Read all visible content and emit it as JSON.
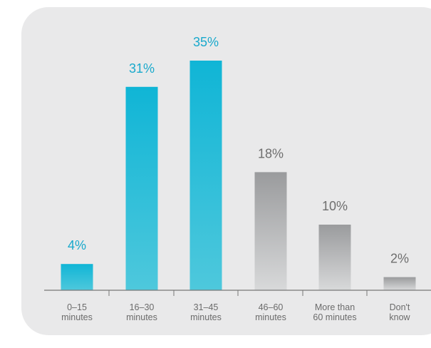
{
  "chart_data": {
    "type": "bar",
    "categories": [
      [
        "0–15",
        "minutes"
      ],
      [
        "16–30",
        "minutes"
      ],
      [
        "31–45",
        "minutes"
      ],
      [
        "46–60",
        "minutes"
      ],
      [
        "More than",
        "60 minutes"
      ],
      [
        "Don't",
        "know"
      ]
    ],
    "values": [
      4,
      31,
      35,
      18,
      10,
      2
    ],
    "value_labels": [
      "4%",
      "31%",
      "35%",
      "18%",
      "10%",
      "2%"
    ],
    "title": "",
    "xlabel": "",
    "ylabel": "",
    "ylim": [
      0,
      35
    ],
    "grid": false,
    "colors": {
      "highlight_bar_top": "#10b5d6",
      "highlight_bar_bottom": "#4ec8dc",
      "highlight_label": "#19a9cc",
      "muted_bar_top": "#9a9b9d",
      "muted_bar_bottom": "#d8d9da",
      "muted_label": "#6e6e6e",
      "axis": "#777777"
    },
    "highlighted": [
      true,
      true,
      true,
      false,
      false,
      false
    ]
  }
}
